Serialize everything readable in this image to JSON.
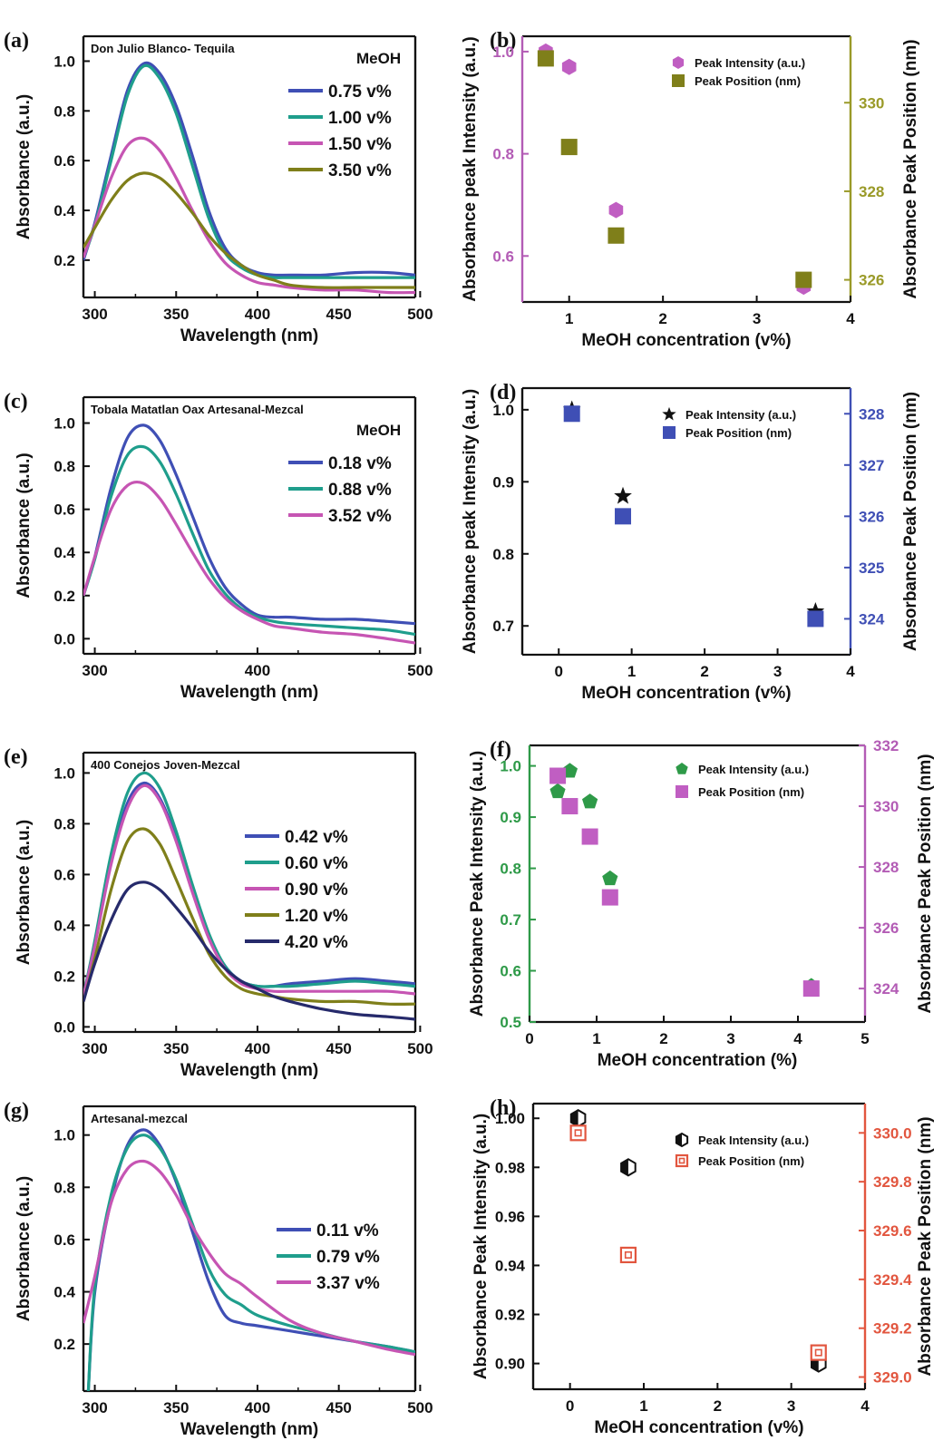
{
  "chart_data": [
    {
      "panel": "(a)",
      "type": "line",
      "title": "Don Julio Blanco- Tequila",
      "xlabel": "Wavelength (nm)",
      "ylabel": "Absorbance (a.u.)",
      "xlim": [
        293,
        497
      ],
      "ylim": [
        0.05,
        1.1
      ],
      "xticks": [
        300,
        350,
        400,
        450,
        500
      ],
      "yticks": [
        0.2,
        0.4,
        0.6,
        0.8,
        1.0
      ],
      "legend_title": "MeOH",
      "series": [
        {
          "name": "0.75 v%",
          "color": "#3f4fb5",
          "x": [
            293,
            300,
            310,
            320,
            330,
            340,
            350,
            360,
            370,
            380,
            390,
            400,
            410,
            420,
            440,
            460,
            480,
            497
          ],
          "y": [
            0.2,
            0.35,
            0.62,
            0.88,
            0.99,
            0.95,
            0.82,
            0.62,
            0.4,
            0.25,
            0.18,
            0.15,
            0.14,
            0.14,
            0.14,
            0.15,
            0.15,
            0.14
          ]
        },
        {
          "name": "1.00 v%",
          "color": "#1f9e8c",
          "x": [
            293,
            300,
            310,
            320,
            330,
            340,
            350,
            360,
            370,
            380,
            390,
            400,
            410,
            420,
            440,
            460,
            480,
            497
          ],
          "y": [
            0.21,
            0.34,
            0.6,
            0.86,
            0.98,
            0.93,
            0.79,
            0.58,
            0.37,
            0.23,
            0.17,
            0.14,
            0.13,
            0.13,
            0.13,
            0.13,
            0.13,
            0.13
          ]
        },
        {
          "name": "1.50 v%",
          "color": "#c655b3",
          "x": [
            293,
            300,
            310,
            320,
            330,
            340,
            350,
            360,
            370,
            380,
            390,
            400,
            410,
            420,
            440,
            460,
            480,
            497
          ],
          "y": [
            0.21,
            0.34,
            0.53,
            0.66,
            0.69,
            0.64,
            0.53,
            0.4,
            0.28,
            0.19,
            0.14,
            0.11,
            0.1,
            0.09,
            0.08,
            0.08,
            0.07,
            0.07
          ]
        },
        {
          "name": "3.50 v%",
          "color": "#7f7f1a",
          "x": [
            293,
            300,
            310,
            320,
            330,
            340,
            350,
            360,
            370,
            380,
            390,
            400,
            410,
            420,
            440,
            460,
            480,
            497
          ],
          "y": [
            0.25,
            0.33,
            0.44,
            0.52,
            0.55,
            0.53,
            0.47,
            0.39,
            0.3,
            0.23,
            0.18,
            0.14,
            0.12,
            0.1,
            0.09,
            0.09,
            0.09,
            0.09
          ]
        }
      ]
    },
    {
      "panel": "(b)",
      "type": "scatter",
      "xlabel": "MeOH concentration (v%)",
      "ylabel": "Absorbance peak Intensity (a.u.)",
      "ylabel_right": "Absorbance Peak Position (nm)",
      "xlim": [
        0.5,
        4
      ],
      "ylim": [
        0.51,
        1.03
      ],
      "ylim_right": [
        325.5,
        331.5
      ],
      "xticks": [
        1,
        2,
        3,
        4
      ],
      "yticks": [
        0.6,
        0.8,
        1.0
      ],
      "yticks_right": [
        326,
        328,
        330
      ],
      "left_axis_color": "#b35cb5",
      "right_axis_color": "#9a9a28",
      "series": [
        {
          "name": "Peak Intensity (a.u.)",
          "marker": "hexagon",
          "color": "#c05ec2",
          "axis": "left",
          "x": [
            0.75,
            1.0,
            1.5,
            3.5
          ],
          "y": [
            1.0,
            0.97,
            0.69,
            0.54
          ]
        },
        {
          "name": "Peak Position (nm)",
          "marker": "square",
          "color": "#7f7f1a",
          "axis": "right",
          "x": [
            0.75,
            1.0,
            1.5,
            3.5
          ],
          "y": [
            331,
            329,
            327,
            326
          ]
        }
      ]
    },
    {
      "panel": "(c)",
      "type": "line",
      "title": "Tobala Matatlan Oax Artesanal-Mezcal",
      "xlabel": "Wavelength (nm)",
      "ylabel": "Absorbance (a.u.)",
      "xlim": [
        293,
        497
      ],
      "ylim": [
        -0.07,
        1.12
      ],
      "xticks": [
        300,
        400,
        500
      ],
      "yticks": [
        0.0,
        0.2,
        0.4,
        0.6,
        0.8,
        1.0
      ],
      "legend_title": "MeOH",
      "series": [
        {
          "name": "0.18 v%",
          "color": "#3f4fb5",
          "x": [
            293,
            300,
            310,
            320,
            330,
            340,
            350,
            360,
            370,
            380,
            390,
            400,
            410,
            420,
            440,
            460,
            480,
            497
          ],
          "y": [
            0.2,
            0.38,
            0.7,
            0.93,
            0.99,
            0.92,
            0.76,
            0.57,
            0.38,
            0.24,
            0.16,
            0.11,
            0.1,
            0.1,
            0.09,
            0.09,
            0.08,
            0.07
          ]
        },
        {
          "name": "0.88 v%",
          "color": "#1f9e8c",
          "x": [
            293,
            300,
            310,
            320,
            330,
            340,
            350,
            360,
            370,
            380,
            390,
            400,
            410,
            420,
            440,
            460,
            480,
            497
          ],
          "y": [
            0.2,
            0.37,
            0.66,
            0.85,
            0.89,
            0.82,
            0.67,
            0.49,
            0.32,
            0.21,
            0.14,
            0.1,
            0.08,
            0.07,
            0.06,
            0.05,
            0.04,
            0.02
          ]
        },
        {
          "name": "3.52 v%",
          "color": "#c655b3",
          "x": [
            293,
            300,
            310,
            320,
            330,
            340,
            350,
            360,
            370,
            380,
            390,
            400,
            410,
            420,
            440,
            460,
            480,
            497
          ],
          "y": [
            0.2,
            0.38,
            0.6,
            0.71,
            0.72,
            0.65,
            0.53,
            0.4,
            0.28,
            0.19,
            0.13,
            0.09,
            0.06,
            0.05,
            0.03,
            0.02,
            0.0,
            -0.02
          ]
        }
      ]
    },
    {
      "panel": "(d)",
      "type": "scatter",
      "xlabel": "MeOH concentration (v%)",
      "ylabel": "Absorbance peak Intensity (a.u.)",
      "ylabel_right": "Absorbance Peak Position (nm)",
      "xlim": [
        -0.5,
        4
      ],
      "ylim": [
        0.66,
        1.03
      ],
      "ylim_right": [
        323.3,
        328.5
      ],
      "xticks": [
        0,
        1,
        2,
        3,
        4
      ],
      "yticks": [
        0.7,
        0.8,
        0.9,
        1.0
      ],
      "yticks_right": [
        324,
        325,
        326,
        327,
        328
      ],
      "left_axis_color": "#111111",
      "right_axis_color": "#3f4fb5",
      "series": [
        {
          "name": "Peak Intensity (a.u.)",
          "marker": "star",
          "color": "#111111",
          "axis": "left",
          "x": [
            0.18,
            0.88,
            3.52
          ],
          "y": [
            1.0,
            0.88,
            0.72
          ]
        },
        {
          "name": "Peak Position (nm)",
          "marker": "square",
          "color": "#3f4fb5",
          "axis": "right",
          "x": [
            0.18,
            0.88,
            3.52
          ],
          "y": [
            328,
            326,
            324
          ]
        }
      ]
    },
    {
      "panel": "(e)",
      "type": "line",
      "title": "400 Conejos Joven-Mezcal",
      "xlabel": "Wavelength (nm)",
      "ylabel": "Absorbance (a.u.)",
      "xlim": [
        293,
        497
      ],
      "ylim": [
        -0.02,
        1.08
      ],
      "xticks": [
        300,
        350,
        400,
        450,
        500
      ],
      "yticks": [
        0.0,
        0.2,
        0.4,
        0.6,
        0.8,
        1.0
      ],
      "series": [
        {
          "name": "0.42 v%",
          "color": "#3f4fb5",
          "x": [
            293,
            300,
            310,
            320,
            330,
            340,
            350,
            360,
            370,
            380,
            390,
            400,
            410,
            420,
            440,
            460,
            480,
            497
          ],
          "y": [
            0.12,
            0.33,
            0.65,
            0.88,
            0.96,
            0.9,
            0.74,
            0.54,
            0.36,
            0.24,
            0.18,
            0.16,
            0.16,
            0.17,
            0.18,
            0.19,
            0.18,
            0.17
          ]
        },
        {
          "name": "0.60 v%",
          "color": "#1f9e8c",
          "x": [
            293,
            300,
            310,
            320,
            330,
            340,
            350,
            360,
            370,
            380,
            390,
            400,
            410,
            420,
            440,
            460,
            480,
            497
          ],
          "y": [
            0.12,
            0.34,
            0.68,
            0.92,
            1.0,
            0.94,
            0.77,
            0.56,
            0.37,
            0.24,
            0.18,
            0.16,
            0.16,
            0.16,
            0.17,
            0.18,
            0.17,
            0.16
          ]
        },
        {
          "name": "0.90 v%",
          "color": "#c655b3",
          "x": [
            293,
            300,
            310,
            320,
            330,
            340,
            350,
            360,
            370,
            380,
            390,
            400,
            410,
            420,
            440,
            460,
            480,
            497
          ],
          "y": [
            0.12,
            0.32,
            0.64,
            0.86,
            0.95,
            0.89,
            0.73,
            0.53,
            0.35,
            0.23,
            0.17,
            0.15,
            0.14,
            0.14,
            0.14,
            0.14,
            0.14,
            0.13
          ]
        },
        {
          "name": "1.20 v%",
          "color": "#7f7f1a",
          "x": [
            293,
            300,
            310,
            320,
            330,
            340,
            350,
            360,
            370,
            380,
            390,
            400,
            410,
            420,
            440,
            460,
            480,
            497
          ],
          "y": [
            0.1,
            0.27,
            0.54,
            0.73,
            0.78,
            0.72,
            0.58,
            0.43,
            0.29,
            0.2,
            0.15,
            0.13,
            0.12,
            0.11,
            0.1,
            0.1,
            0.09,
            0.09
          ]
        },
        {
          "name": "4.20 v%",
          "color": "#262a6b",
          "x": [
            293,
            300,
            310,
            320,
            330,
            340,
            350,
            360,
            370,
            380,
            390,
            400,
            410,
            420,
            440,
            460,
            480,
            497
          ],
          "y": [
            0.1,
            0.25,
            0.42,
            0.54,
            0.57,
            0.54,
            0.47,
            0.39,
            0.3,
            0.23,
            0.18,
            0.15,
            0.12,
            0.1,
            0.07,
            0.05,
            0.04,
            0.03
          ]
        }
      ]
    },
    {
      "panel": "(f)",
      "type": "scatter",
      "xlabel": "MeOH concentration (%)",
      "ylabel": "Absorbance Peak Intensity (a.u.)",
      "ylabel_right": "Absorbance Peak Position (nm)",
      "xlim": [
        0,
        5
      ],
      "ylim": [
        0.5,
        1.04
      ],
      "ylim_right": [
        322.9,
        332
      ],
      "xticks": [
        0,
        1,
        2,
        3,
        4,
        5
      ],
      "yticks": [
        0.5,
        0.6,
        0.7,
        0.8,
        0.9,
        1.0
      ],
      "yticks_right": [
        324,
        326,
        328,
        330,
        332
      ],
      "left_axis_color": "#2e9a48",
      "right_axis_color": "#b35cb5",
      "series": [
        {
          "name": "Peak Intensity (a.u.)",
          "marker": "pentagon",
          "color": "#2e9a48",
          "axis": "left",
          "x": [
            0.42,
            0.6,
            0.9,
            1.2,
            4.2
          ],
          "y": [
            0.95,
            0.99,
            0.93,
            0.78,
            0.57
          ]
        },
        {
          "name": "Peak Position (nm)",
          "marker": "square",
          "color": "#c05ec2",
          "axis": "right",
          "x": [
            0.42,
            0.6,
            0.9,
            1.2,
            4.2
          ],
          "y": [
            331,
            330,
            329,
            327,
            324
          ]
        }
      ]
    },
    {
      "panel": "(g)",
      "type": "line",
      "title": "Artesanal-mezcal",
      "xlabel": "Wavelength (nm)",
      "ylabel": "Absorbance (a.u.)",
      "xlim": [
        293,
        497
      ],
      "ylim": [
        0.02,
        1.11
      ],
      "xticks": [
        300,
        350,
        400,
        450,
        500
      ],
      "yticks": [
        0.2,
        0.4,
        0.6,
        0.8,
        1.0
      ],
      "series": [
        {
          "name": "0.11 v%",
          "color": "#3f4fb5",
          "x": [
            296,
            300,
            310,
            320,
            330,
            340,
            350,
            360,
            370,
            380,
            390,
            400,
            420,
            440,
            460,
            480,
            497
          ],
          "y": [
            0.02,
            0.4,
            0.75,
            0.96,
            1.02,
            0.96,
            0.82,
            0.63,
            0.44,
            0.31,
            0.28,
            0.27,
            0.25,
            0.23,
            0.21,
            0.19,
            0.17
          ]
        },
        {
          "name": "0.79 v%",
          "color": "#1f9e8c",
          "x": [
            296,
            300,
            310,
            320,
            330,
            340,
            350,
            360,
            370,
            380,
            390,
            400,
            420,
            440,
            460,
            480,
            497
          ],
          "y": [
            0.02,
            0.42,
            0.77,
            0.95,
            1.0,
            0.95,
            0.83,
            0.66,
            0.49,
            0.39,
            0.35,
            0.31,
            0.27,
            0.24,
            0.21,
            0.19,
            0.17
          ]
        },
        {
          "name": "3.37 v%",
          "color": "#c655b3",
          "x": [
            293,
            300,
            310,
            320,
            330,
            340,
            350,
            360,
            370,
            380,
            390,
            400,
            420,
            440,
            460,
            480,
            497
          ],
          "y": [
            0.28,
            0.46,
            0.74,
            0.87,
            0.9,
            0.86,
            0.77,
            0.65,
            0.55,
            0.47,
            0.43,
            0.38,
            0.29,
            0.24,
            0.21,
            0.18,
            0.16
          ]
        }
      ]
    },
    {
      "panel": "(h)",
      "type": "scatter",
      "xlabel": "MeOH concentration (v%)",
      "ylabel": "Absorbance Peak Intensity (a.u.)",
      "ylabel_right": "Absorbance Peak Position (nm)",
      "xlim": [
        -0.5,
        4
      ],
      "ylim": [
        0.8895,
        1.006
      ],
      "ylim_right": [
        328.95,
        330.12
      ],
      "xticks": [
        0,
        1,
        2,
        3,
        4
      ],
      "yticks": [
        0.9,
        0.92,
        0.94,
        0.96,
        0.98,
        1.0
      ],
      "yticks_right": [
        329.0,
        329.2,
        329.4,
        329.6,
        329.8,
        330.0
      ],
      "left_axis_color": "#111111",
      "right_axis_color": "#e2563f",
      "series": [
        {
          "name": "Peak Intensity (a.u.)",
          "marker": "hexagon-half",
          "color": "#111111",
          "axis": "left",
          "x": [
            0.11,
            0.79,
            3.37
          ],
          "y": [
            1.0,
            0.98,
            0.9
          ]
        },
        {
          "name": "Peak Position (nm)",
          "marker": "square-open",
          "color": "#e2563f",
          "axis": "right",
          "x": [
            0.11,
            0.79,
            3.37
          ],
          "y": [
            330.0,
            329.5,
            329.1
          ]
        }
      ]
    }
  ]
}
